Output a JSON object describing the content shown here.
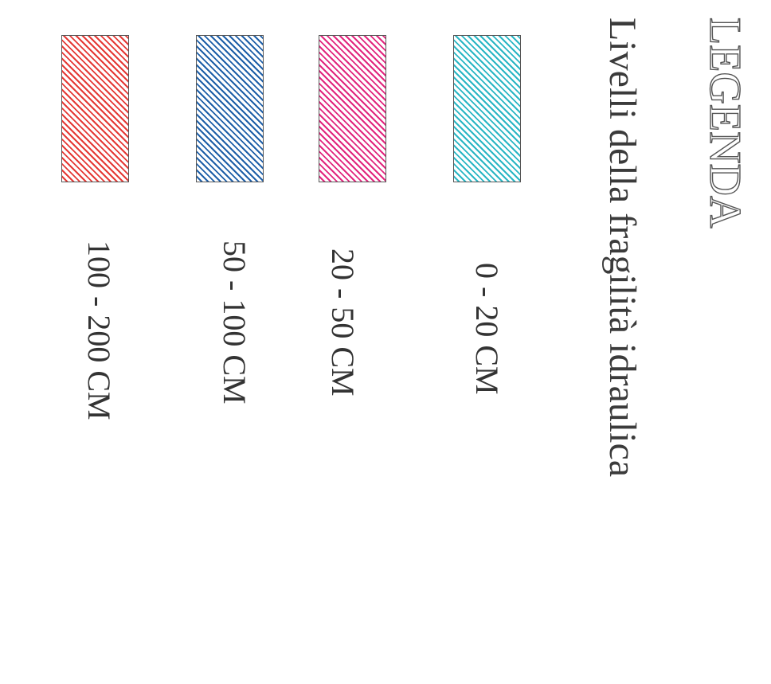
{
  "legend": {
    "title": "LEGENDA",
    "subtitle": "Livelli della fragilità idraulica",
    "items": [
      {
        "label": "0 - 20 CM",
        "color": "#29b6c4",
        "pattern": "diagonal-hatch"
      },
      {
        "label": "20 - 50 CM",
        "color": "#e2267e",
        "pattern": "diagonal-hatch"
      },
      {
        "label": "50 - 100 CM",
        "color": "#1e5fa8",
        "pattern": "diagonal-hatch"
      },
      {
        "label": "100 - 200 CM",
        "color": "#e53935",
        "pattern": "diagonal-hatch"
      }
    ]
  }
}
